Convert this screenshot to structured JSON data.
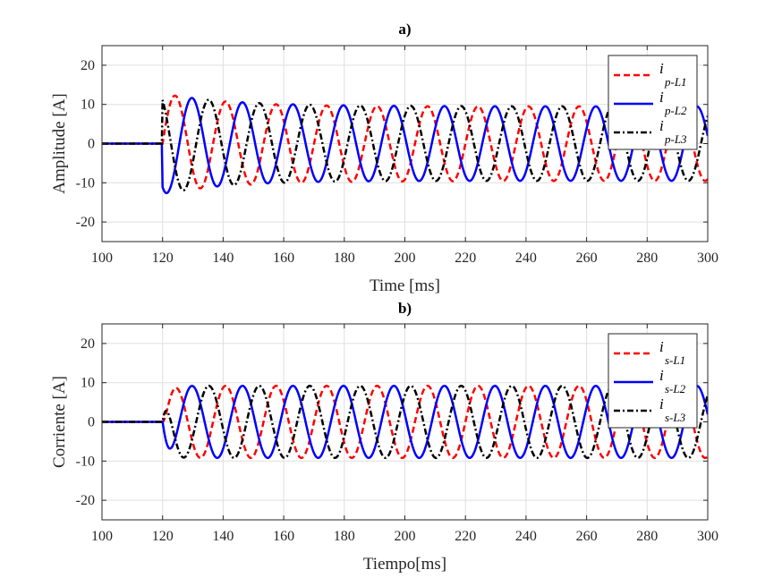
{
  "chart_data": [
    {
      "type": "line",
      "title": "a)",
      "xlabel": "Time [ms]",
      "ylabel": "Amplitude [A]",
      "xlim": [
        100,
        300
      ],
      "ylim": [
        -25,
        25
      ],
      "xticks": [
        100,
        120,
        140,
        160,
        180,
        200,
        220,
        240,
        260,
        280,
        300
      ],
      "yticks": [
        -20,
        -10,
        0,
        10,
        20
      ],
      "grid": true,
      "legend_position": "top-right",
      "series": [
        {
          "main": "i",
          "sub": "p-L1",
          "color": "#ff0000",
          "style": "dashed",
          "phase_deg": 0
        },
        {
          "main": "i",
          "sub": "p-L2",
          "color": "#0000ff",
          "style": "solid",
          "phase_deg": -120
        },
        {
          "main": "i",
          "sub": "p-L3",
          "color": "#000000",
          "style": "dashdot",
          "phase_deg": 120
        }
      ],
      "fault_start_ms": 120,
      "steady_amplitude": 9.5,
      "frequency_hz": 60,
      "transient": "inrush"
    },
    {
      "type": "line",
      "title": "b)",
      "xlabel": "Tiempo[ms]",
      "ylabel": "Corriente [A]",
      "xlim": [
        100,
        300
      ],
      "ylim": [
        -25,
        25
      ],
      "xticks": [
        100,
        120,
        140,
        160,
        180,
        200,
        220,
        240,
        260,
        280,
        300
      ],
      "yticks": [
        -20,
        -10,
        0,
        10,
        20
      ],
      "grid": true,
      "legend_position": "top-right",
      "series": [
        {
          "main": "i",
          "sub": "s-L1",
          "color": "#ff0000",
          "style": "dashed",
          "phase_deg": 0
        },
        {
          "main": "i",
          "sub": "s-L2",
          "color": "#0000ff",
          "style": "solid",
          "phase_deg": -120
        },
        {
          "main": "i",
          "sub": "s-L3",
          "color": "#000000",
          "style": "dashdot",
          "phase_deg": 120
        }
      ],
      "fault_start_ms": 120,
      "steady_amplitude": 9.2,
      "frequency_hz": 60,
      "transient": "none"
    }
  ]
}
